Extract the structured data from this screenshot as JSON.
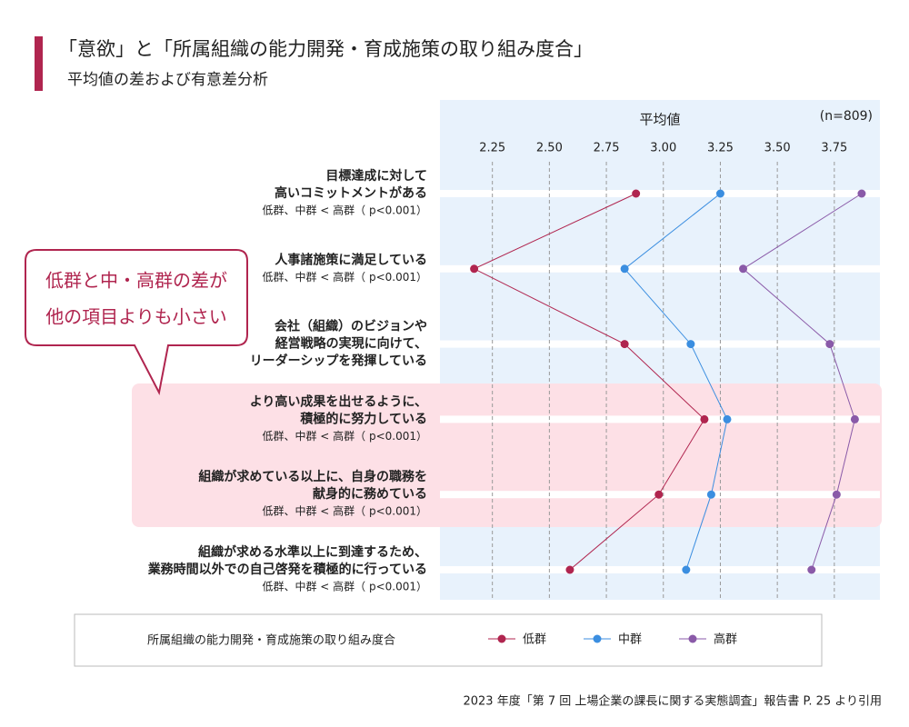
{
  "chart_data": {
    "type": "dot-line",
    "title": "「意欲」と「所属組織の能力開発・育成施策の取り組み度合」",
    "subtitle": "平均値の差および有意差分析",
    "x_label": "平均値",
    "sample_note": "(n=809)",
    "categories": [
      [
        "目標達成に対して",
        "高いコミットメントがある"
      ],
      [
        "人事諸施策に満足している"
      ],
      [
        "会社（組織）のビジョンや",
        "経営戦略の実現に向けて、",
        "リーダーシップを発揮している"
      ],
      [
        "より高い成果を出せるように、",
        "積極的に努力している"
      ],
      [
        "組織が求めている以上に、自身の職務を",
        "献身的に務めている"
      ],
      [
        "組織が求める水準以上に到達するため、",
        "業務時間以外での自己啓発を積極的に行っている"
      ]
    ],
    "notes": [
      "低群、中群 < 高群（ p<0.001）",
      "低群、中群 < 高群（ p<0.001）",
      null,
      "低群、中群 < 高群（ p<0.001）",
      "低群、中群 < 高群（ p<0.001）",
      "低群、中群 < 高群（ p<0.001）"
    ],
    "series": [
      {
        "name": "低群",
        "color": "#b0254f",
        "values": [
          2.88,
          2.17,
          2.83,
          3.18,
          2.98,
          2.59
        ]
      },
      {
        "name": "中群",
        "color": "#3b8ee0",
        "values": [
          3.25,
          2.83,
          3.12,
          3.28,
          3.21,
          3.1
        ]
      },
      {
        "name": "高群",
        "color": "#8a5aa8",
        "values": [
          3.87,
          3.35,
          3.73,
          3.84,
          3.76,
          3.65
        ]
      }
    ],
    "xlim": [
      2.02,
      3.95
    ],
    "xticks": [
      2.25,
      {
        "value": 2.5,
        "label": "2.50"
      },
      2.75,
      {
        "value": 3,
        "label": "3.00"
      },
      3.25,
      {
        "value": 3.5,
        "label": "3.50"
      },
      3.75
    ],
    "grid": true,
    "callout": [
      "低群と中・高群の差が",
      "他の項目よりも小さい"
    ],
    "legend_title": "所属組織の能力開発・育成施策の取り組み度合",
    "source": "2023 年度「第 7 回 上場企業の課長に関する実態調査」報告書 P. 25 より引用"
  }
}
